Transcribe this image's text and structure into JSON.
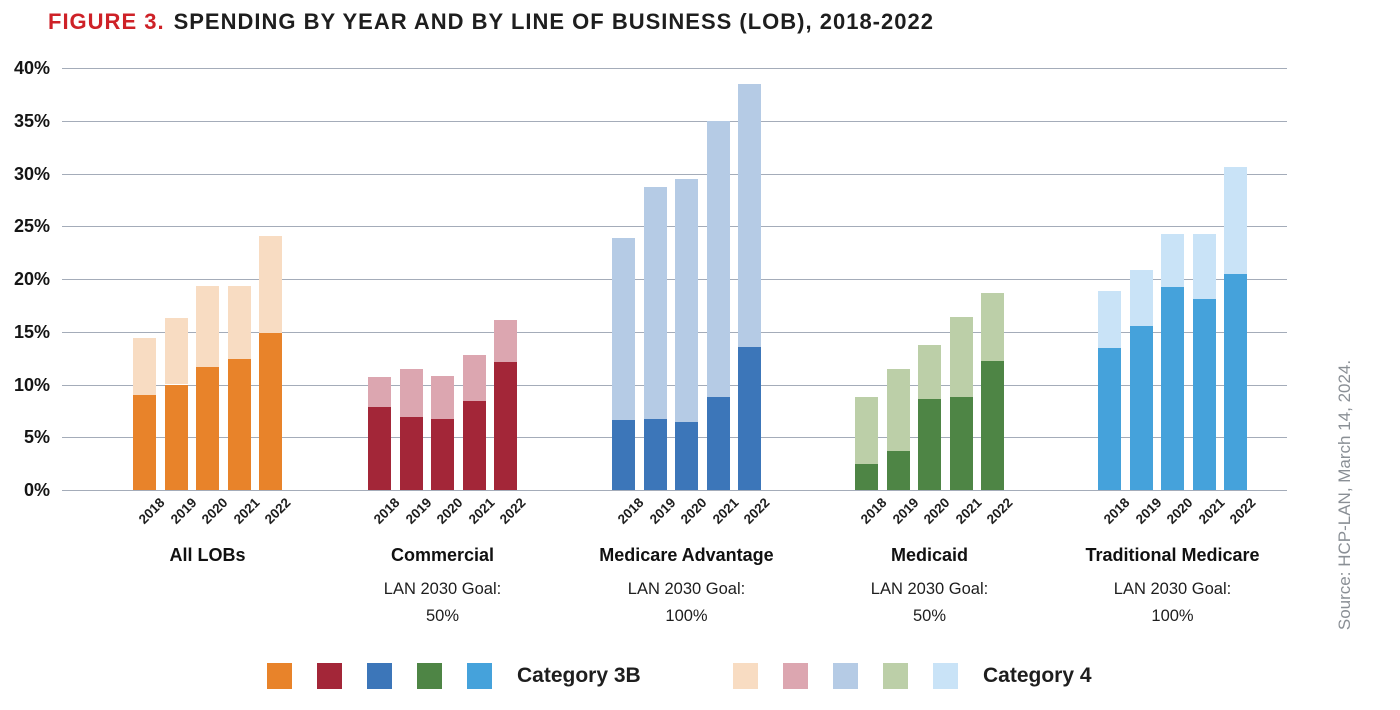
{
  "title": {
    "label": "FIGURE 3.",
    "text": "SPENDING BY YEAR AND BY LINE OF BUSINESS (LOB), 2018-2022"
  },
  "source": "Source: HCP-LAN, March 14, 2024.",
  "legend": {
    "cat3b_label": "Category 3B",
    "cat4_label": "Category 4"
  },
  "chart_data": {
    "type": "bar",
    "stacked": true,
    "title": "FIGURE 3. SPENDING BY YEAR AND BY LINE OF BUSINESS (LOB), 2018-2022",
    "units": "percent of spending",
    "ylim": [
      0,
      40
    ],
    "y_ticks": [
      "40%",
      "35%",
      "30%",
      "25%",
      "20%",
      "15%",
      "10%",
      "5%",
      "0%"
    ],
    "grid": true,
    "legend_position": "bottom",
    "years": [
      "2018",
      "2019",
      "2020",
      "2021",
      "2022"
    ],
    "series_names": [
      "Category 3B",
      "Category 4"
    ],
    "groups": [
      {
        "label": "All LOBs",
        "goal_lines": [],
        "color_cat3b": "#E8832A",
        "color_cat4": "#F8DCC2",
        "cat3b": [
          9.0,
          10.0,
          11.7,
          12.4,
          14.9
        ],
        "cat4": [
          5.4,
          6.3,
          7.6,
          6.9,
          9.2
        ],
        "totals": [
          14.4,
          16.3,
          19.3,
          19.3,
          24.1
        ]
      },
      {
        "label": "Commercial",
        "goal_lines": [
          "LAN 2030 Goal:",
          "50%"
        ],
        "color_cat3b": "#A32638",
        "color_cat4": "#DCA6B0",
        "cat3b": [
          7.9,
          6.9,
          6.7,
          8.4,
          12.1
        ],
        "cat4": [
          2.8,
          4.6,
          4.1,
          4.4,
          4.0
        ],
        "totals": [
          10.7,
          11.5,
          10.8,
          12.8,
          16.1
        ]
      },
      {
        "label": "Medicare Advantage",
        "goal_lines": [
          "LAN 2030 Goal:",
          "100%"
        ],
        "color_cat3b": "#3C76B9",
        "color_cat4": "#B5CBE5",
        "cat3b": [
          6.6,
          6.7,
          6.4,
          8.8,
          13.6
        ],
        "cat4": [
          17.3,
          22.0,
          23.1,
          26.2,
          24.9
        ],
        "totals": [
          23.9,
          28.7,
          29.5,
          35.0,
          38.5
        ]
      },
      {
        "label": "Medicaid",
        "goal_lines": [
          "LAN 2030 Goal:",
          "50%"
        ],
        "color_cat3b": "#4E8545",
        "color_cat4": "#BCCFA8",
        "cat3b": [
          2.5,
          3.7,
          8.6,
          8.8,
          12.2
        ],
        "cat4": [
          6.3,
          7.8,
          5.1,
          7.6,
          6.5
        ],
        "totals": [
          8.8,
          11.5,
          13.7,
          16.4,
          18.7
        ]
      },
      {
        "label": "Traditional Medicare",
        "goal_lines": [
          "LAN 2030 Goal:",
          "100%"
        ],
        "color_cat3b": "#45A2DB",
        "color_cat4": "#C9E3F7",
        "cat3b": [
          13.5,
          15.5,
          19.2,
          18.1,
          20.5
        ],
        "cat4": [
          5.4,
          5.4,
          5.1,
          6.2,
          10.1
        ],
        "totals": [
          18.9,
          20.9,
          24.3,
          24.3,
          30.6
        ]
      }
    ]
  }
}
